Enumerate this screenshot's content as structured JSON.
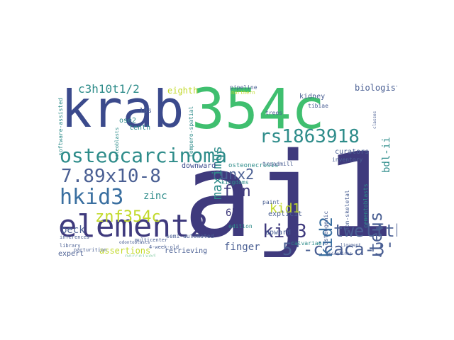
{
  "palette": {
    "navy": "#3b4a8c",
    "indigo": "#3f3a7d",
    "teal": "#2e8c8a",
    "green": "#3fbf6f",
    "lime": "#c2d92a",
    "blue": "#3a6fa0",
    "slate": "#4a5f93",
    "light": "#9fd7b8"
  },
  "words": [
    {
      "text": "krab"
    },
    {
      "text": "354c"
    },
    {
      "text": "aj18"
    },
    {
      "text": "element2"
    },
    {
      "text": "osteocarcinoma"
    },
    {
      "text": "rs1863918"
    },
    {
      "text": "hkid3"
    },
    {
      "text": "znf354c"
    },
    {
      "text": "7.89x10-8"
    },
    {
      "text": "kid3"
    },
    {
      "text": "5'-ccaca-3'"
    },
    {
      "text": "twelfth"
    },
    {
      "text": "gluteus"
    },
    {
      "text": "kid2"
    },
    {
      "text": "runx2"
    },
    {
      "text": "fhn"
    },
    {
      "text": "kid1"
    },
    {
      "text": "maximus"
    },
    {
      "text": "c3h10t1/2"
    },
    {
      "text": "biologist"
    },
    {
      "text": "bdl-ii"
    },
    {
      "text": "zinc"
    },
    {
      "text": "beck"
    },
    {
      "text": "finger"
    },
    {
      "text": "6kb"
    },
    {
      "text": "assertions"
    },
    {
      "text": "eighth"
    },
    {
      "text": "tenth"
    },
    {
      "text": "ose2"
    },
    {
      "text": "18s"
    },
    {
      "text": "kidney"
    },
    {
      "text": "curators"
    },
    {
      "text": "explicit"
    },
    {
      "text": "upward"
    },
    {
      "text": "downward"
    },
    {
      "text": "kingdoms"
    },
    {
      "text": "osteonecrosis"
    },
    {
      "text": "paint"
    },
    {
      "text": "expert"
    },
    {
      "text": "retrieving"
    },
    {
      "text": "perceived"
    },
    {
      "text": "confluence"
    },
    {
      "text": "complementarity"
    },
    {
      "text": "64-kda"
    },
    {
      "text": "edition"
    },
    {
      "text": "pipeline"
    },
    {
      "text": "treadmill"
    },
    {
      "text": "inventory"
    },
    {
      "text": "calvariae"
    },
    {
      "text": "osteogenic"
    },
    {
      "text": "cementoblasts"
    },
    {
      "text": "semi-automated"
    },
    {
      "text": "software-assisted"
    },
    {
      "text": "tempero-spatial"
    },
    {
      "text": "trees"
    },
    {
      "text": "tibiae"
    },
    {
      "text": "guidelines"
    },
    {
      "text": "kilobase"
    },
    {
      "text": "northern"
    },
    {
      "text": "multicenter"
    },
    {
      "text": "4-week-old"
    },
    {
      "text": "inferences"
    },
    {
      "text": "library"
    },
    {
      "text": "parturition"
    },
    {
      "text": "znf"
    },
    {
      "text": "alignments"
    },
    {
      "text": "non-skeletal"
    },
    {
      "text": "ligament"
    },
    {
      "text": "osteoblasts"
    },
    {
      "text": "odontoblasts"
    },
    {
      "text": "classes"
    }
  ]
}
